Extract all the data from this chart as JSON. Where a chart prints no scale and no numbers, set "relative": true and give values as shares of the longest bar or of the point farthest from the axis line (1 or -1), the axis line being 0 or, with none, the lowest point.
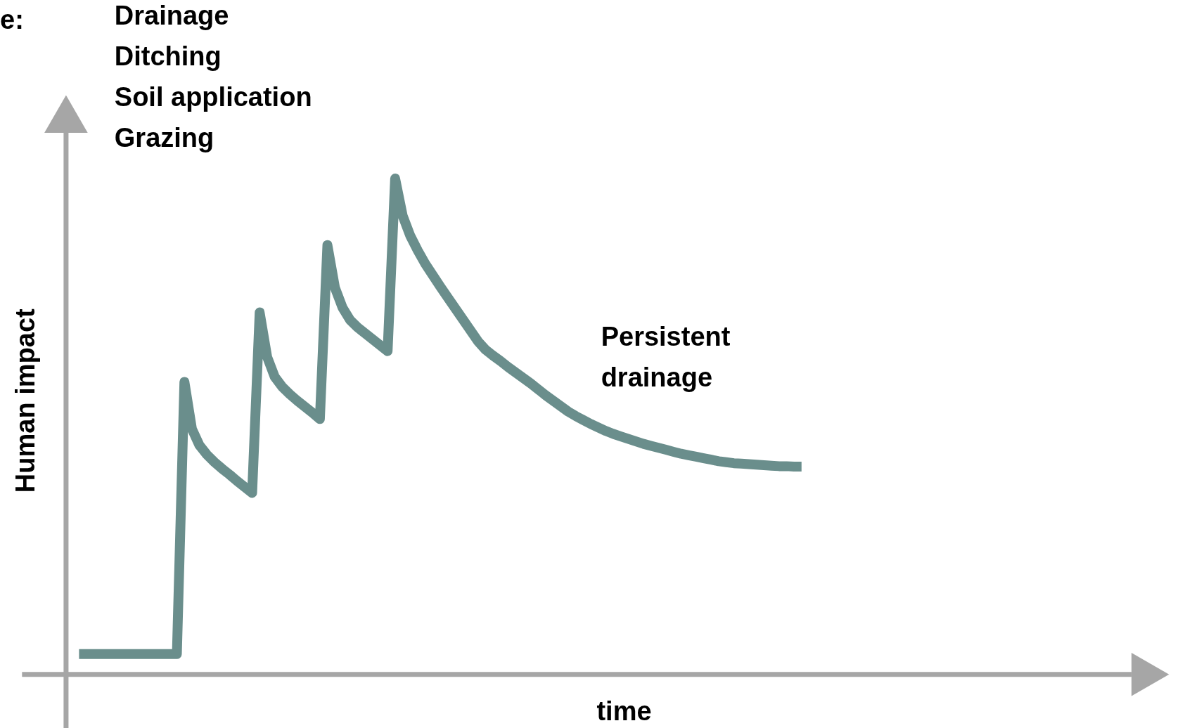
{
  "chart_data": {
    "type": "line",
    "relative": true,
    "xlabel": "time",
    "ylabel": "Human impact",
    "annotations": [
      "e:",
      "Drainage\nDitching\nSoil application\nGrazing",
      "Persistent\ndrainage"
    ],
    "categories": [
      null,
      null,
      null,
      null,
      null,
      null,
      null,
      null,
      null,
      null,
      null,
      null,
      null,
      null,
      null,
      null,
      null,
      null,
      null,
      null,
      null,
      null,
      null,
      null,
      null,
      null,
      null,
      null,
      null,
      null,
      null,
      null,
      null,
      null,
      null,
      null,
      null,
      null,
      null,
      null,
      null,
      null,
      null,
      null,
      null,
      null,
      null,
      null,
      null,
      null,
      null,
      null,
      null,
      null,
      null,
      null,
      null,
      null,
      null,
      null,
      null,
      null,
      null,
      null,
      null,
      null,
      null,
      null,
      null,
      null,
      null,
      null,
      null,
      null,
      null,
      null,
      null,
      null,
      null,
      null,
      null,
      null,
      null,
      null,
      null,
      null,
      null,
      null,
      null,
      null,
      null,
      null,
      null,
      null,
      null,
      null,
      null
    ],
    "series": [
      {
        "color": "#6a8e8c",
        "values": [
          0.041,
          0.041,
          0.041,
          0.041,
          0.041,
          0.041,
          0.041,
          0.041,
          0.041,
          0.041,
          0.041,
          0.041,
          0.041,
          0.041,
          0.59,
          0.495,
          0.462,
          0.443,
          0.428,
          0.415,
          0.403,
          0.39,
          0.378,
          0.366,
          0.73,
          0.64,
          0.6,
          0.58,
          0.565,
          0.552,
          0.54,
          0.528,
          0.515,
          0.866,
          0.78,
          0.74,
          0.715,
          0.7,
          0.688,
          0.676,
          0.664,
          0.652,
          1,
          0.925,
          0.885,
          0.855,
          0.828,
          0.805,
          0.782,
          0.76,
          0.738,
          0.716,
          0.694,
          0.672,
          0.655,
          0.643,
          0.632,
          0.62,
          0.609,
          0.598,
          0.587,
          0.575,
          0.563,
          0.552,
          0.541,
          0.53,
          0.521,
          0.513,
          0.505,
          0.498,
          0.491,
          0.485,
          0.48,
          0.475,
          0.47,
          0.465,
          0.461,
          0.457,
          0.453,
          0.449,
          0.445,
          0.442,
          0.439,
          0.436,
          0.433,
          0.43,
          0.428,
          0.426,
          0.425,
          0.424,
          0.423,
          0.422,
          0.421,
          0.42,
          0.42,
          0.419,
          0.419
        ]
      }
    ]
  }
}
